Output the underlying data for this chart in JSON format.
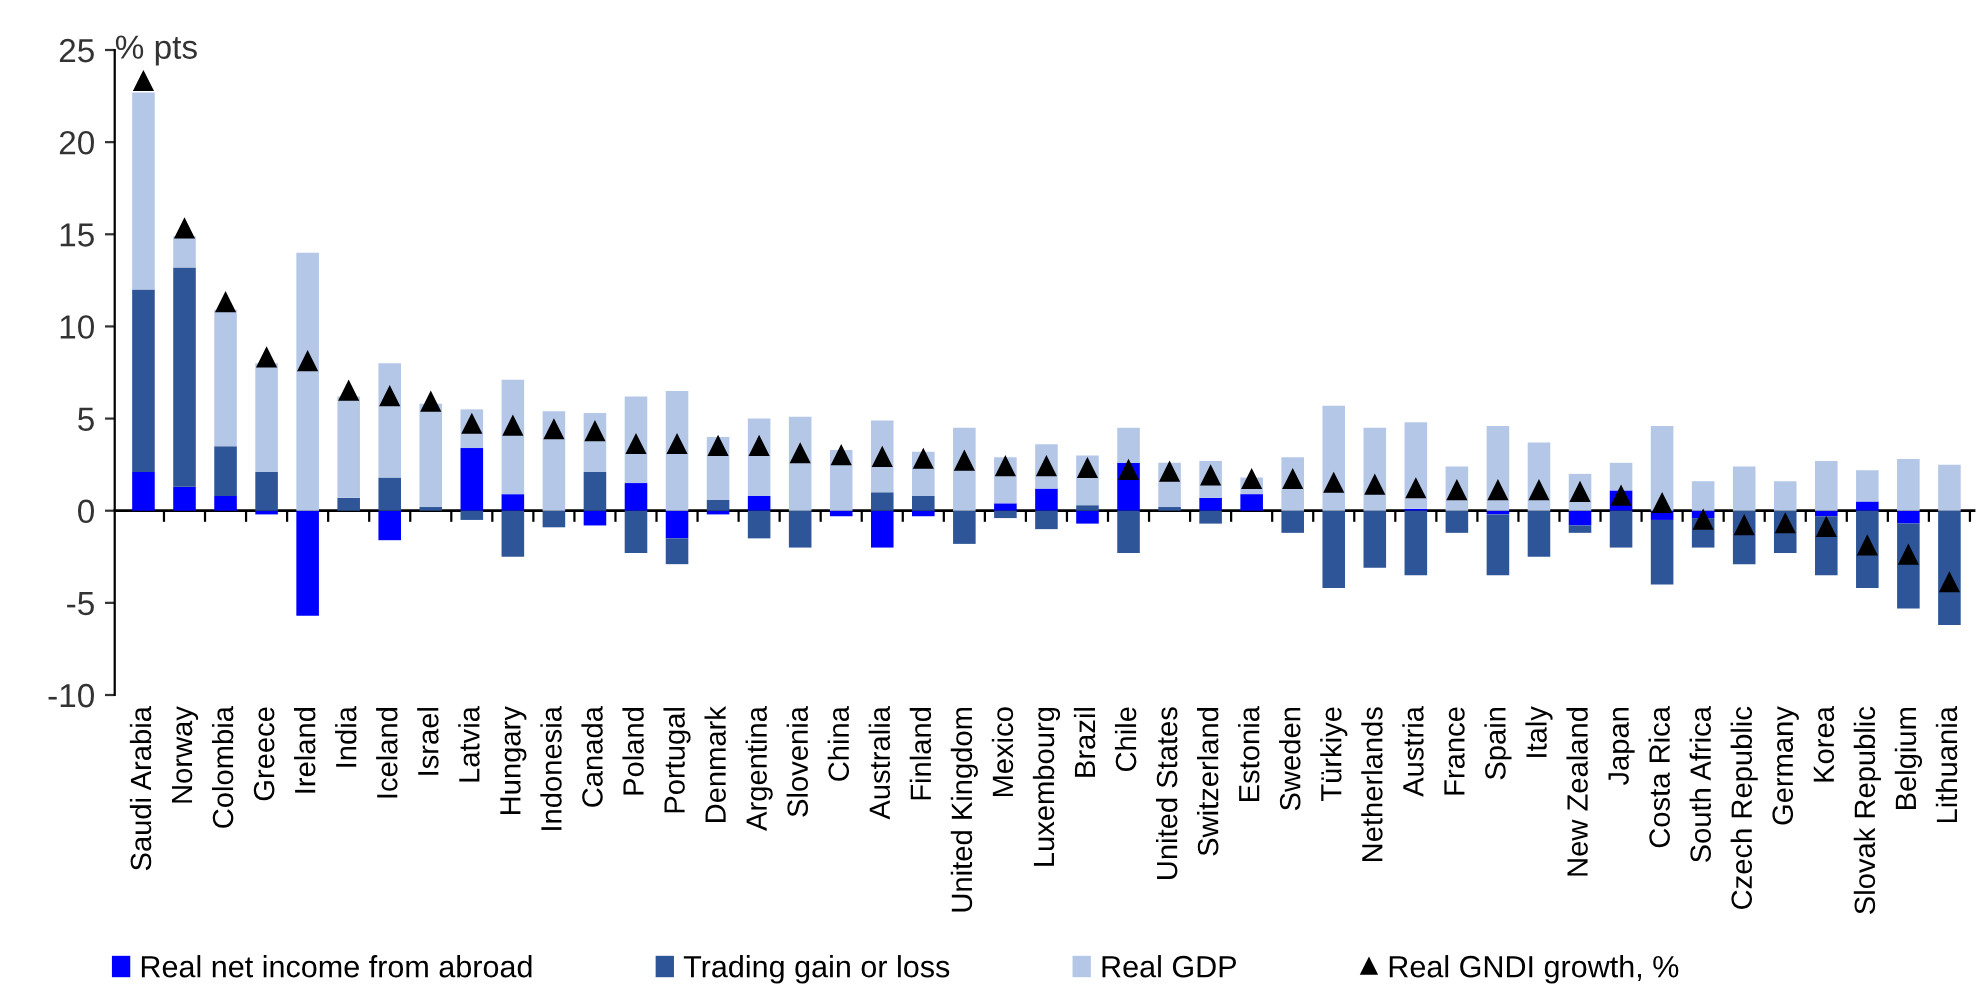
{
  "chart_data": {
    "type": "bar",
    "stacked": true,
    "ylabel": "% pts",
    "ylim": [
      -10,
      25
    ],
    "yticks": [
      -10,
      -5,
      0,
      5,
      10,
      15,
      20,
      25
    ],
    "legend": "bottom",
    "categories": [
      "Saudi Arabia",
      "Norway",
      "Colombia",
      "Greece",
      "Ireland",
      "India",
      "Iceland",
      "Israel",
      "Latvia",
      "Hungary",
      "Indonesia",
      "Canada",
      "Poland",
      "Portugal",
      "Denmark",
      "Argentina",
      "Slovenia",
      "China",
      "Australia",
      "Finland",
      "United Kingdom",
      "Mexico",
      "Luxembourg",
      "Brazil",
      "Chile",
      "United States",
      "Switzerland",
      "Estonia",
      "Sweden",
      "Türkiye",
      "Netherlands",
      "Austria",
      "France",
      "Spain",
      "Italy",
      "New Zealand",
      "Japan",
      "Costa Rica",
      "South Africa",
      "Czech Republic",
      "Germany",
      "Korea",
      "Slovak Republic",
      "Belgium",
      "Lithuania"
    ],
    "series": [
      {
        "name": "Real net income from abroad",
        "color": "#0000ff",
        "values": [
          2.1,
          1.3,
          0.8,
          -0.2,
          -5.7,
          0,
          -1.6,
          0,
          3.4,
          0.9,
          0,
          -0.8,
          1.5,
          -1.5,
          -0.2,
          0.8,
          0,
          -0.3,
          -2.0,
          -0.3,
          0,
          0.4,
          1.2,
          -0.7,
          2.6,
          0,
          0.7,
          0.9,
          0,
          0,
          0,
          0.1,
          0,
          -0.2,
          0,
          -0.8,
          1.1,
          -0.5,
          -0.4,
          0,
          0,
          -0.3,
          0.5,
          -0.7,
          0
        ]
      },
      {
        "name": "Trading gain or loss",
        "color": "#2e5597",
        "values": [
          9.9,
          11.9,
          2.7,
          2.1,
          0,
          0.7,
          1.8,
          0.2,
          -0.5,
          -2.5,
          -0.9,
          2.1,
          -2.3,
          -1.4,
          0.6,
          -1.5,
          -2.0,
          0,
          1.0,
          0.8,
          -1.8,
          -0.4,
          -1.0,
          0.3,
          -2.3,
          0.2,
          -0.7,
          0,
          -1.2,
          -4.2,
          -3.1,
          -3.5,
          -1.2,
          -3.3,
          -2.5,
          -0.4,
          -2.0,
          -3.5,
          -1.6,
          -2.9,
          -2.3,
          -3.2,
          -4.2,
          -4.6,
          -6.2
        ]
      },
      {
        "name": "Real GDP",
        "color": "#b4c7e7",
        "values": [
          10.7,
          1.7,
          7.4,
          5.9,
          14.0,
          5.5,
          6.2,
          5.6,
          2.1,
          6.2,
          5.4,
          3.2,
          4.7,
          6.5,
          3.4,
          4.2,
          5.1,
          3.3,
          3.9,
          2.4,
          4.5,
          2.5,
          2.4,
          2.7,
          1.9,
          2.4,
          2.0,
          0.9,
          2.9,
          5.7,
          4.5,
          4.7,
          2.4,
          4.6,
          3.7,
          2.0,
          1.5,
          4.6,
          1.6,
          2.4,
          1.6,
          2.7,
          1.7,
          2.8,
          2.5
        ]
      },
      {
        "name": "Real GNDI growth, %",
        "type": "scatter",
        "marker": "triangle",
        "color": "#000000",
        "values": [
          23.3,
          15.3,
          11.3,
          8.3,
          8.1,
          6.5,
          6.2,
          5.9,
          4.7,
          4.6,
          4.4,
          4.3,
          3.6,
          3.6,
          3.5,
          3.5,
          3.1,
          3.0,
          2.9,
          2.8,
          2.7,
          2.4,
          2.4,
          2.3,
          2.2,
          2.1,
          1.9,
          1.7,
          1.7,
          1.5,
          1.4,
          1.2,
          1.1,
          1.1,
          1.1,
          1.0,
          0.8,
          0.4,
          -0.5,
          -0.8,
          -0.7,
          -0.9,
          -1.9,
          -2.4,
          -3.9
        ]
      }
    ]
  }
}
